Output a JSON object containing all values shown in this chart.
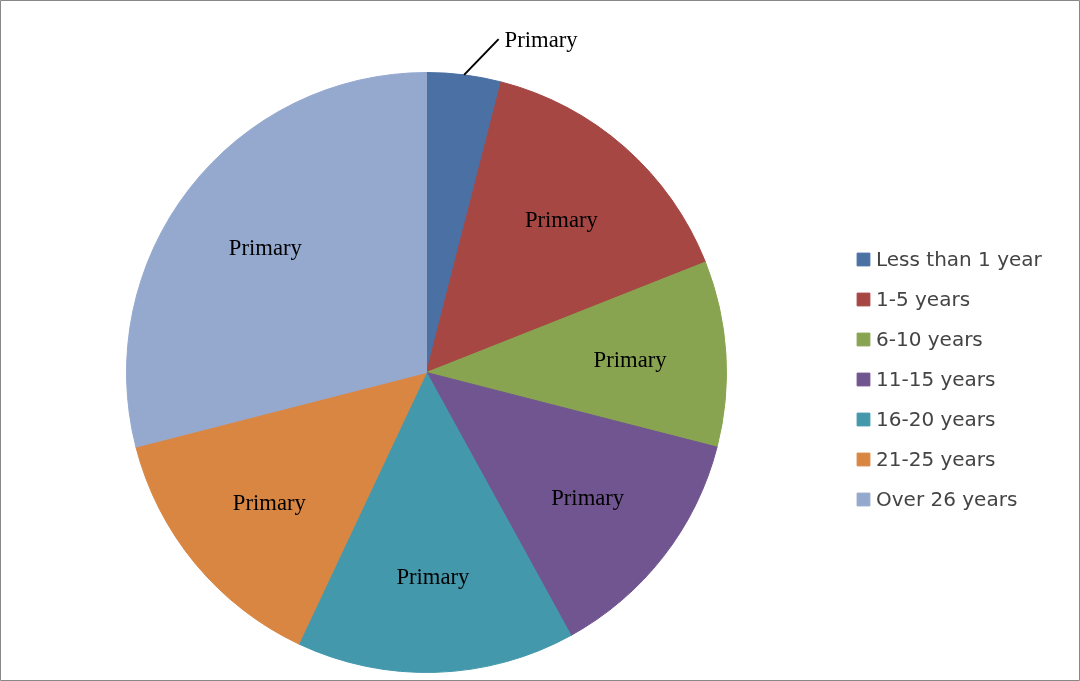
{
  "chart_data": {
    "type": "pie",
    "categories": [
      "Less than 1 year",
      "1-5 years",
      "6-10 years",
      "11-15 years",
      "16-20 years",
      "21-25 years",
      "Over 26 years"
    ],
    "values": [
      4,
      15,
      10,
      13,
      15,
      14,
      29
    ],
    "colors": [
      "#4a70a4",
      "#a64744",
      "#88a450",
      "#705590",
      "#4398ac",
      "#d98642",
      "#95a9cf"
    ],
    "value_labels": [
      "Primary",
      "Primary",
      "Primary",
      "Primary",
      "Primary",
      "Primary",
      "Primary"
    ],
    "legend": "right"
  }
}
